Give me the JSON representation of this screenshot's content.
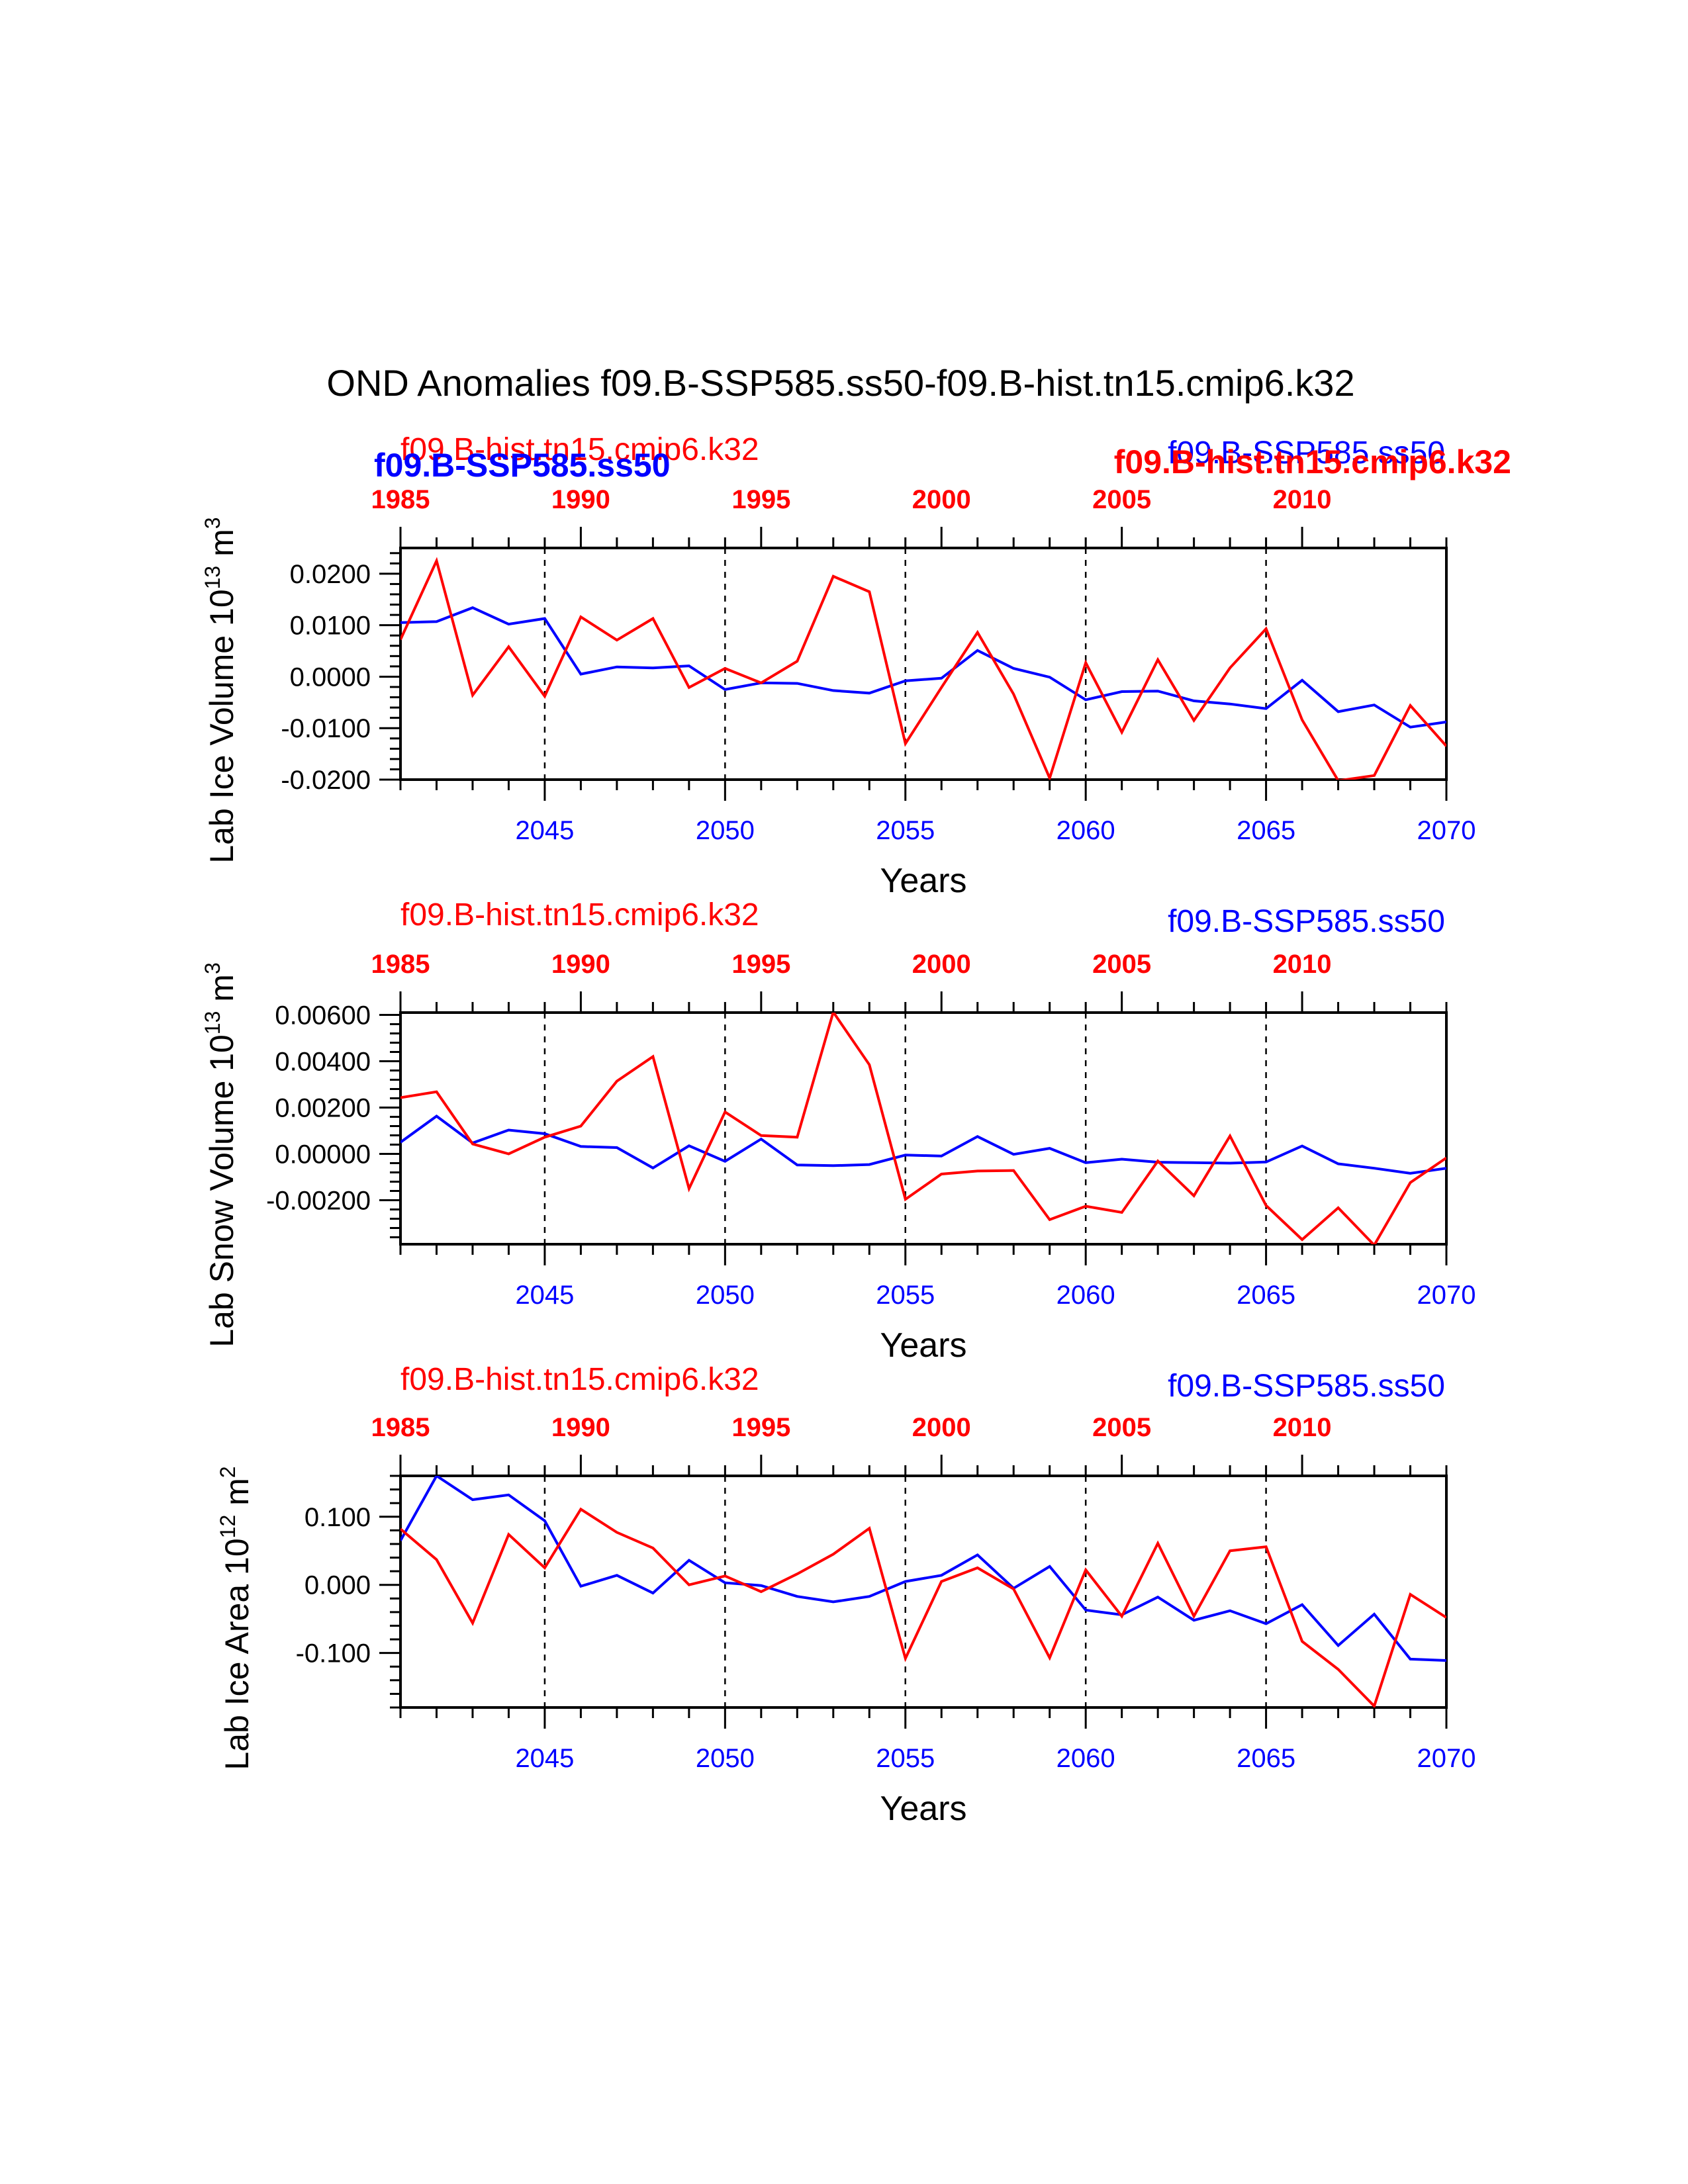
{
  "title": "OND Anomalies f09.B-SSP585.ss50-f09.B-hist.tn15.cmip6.k32",
  "colors": {
    "ssp": "#0000ff",
    "hist": "#ff0000",
    "axis": "#000000"
  },
  "legend": {
    "hist": "f09.B-hist.tn15.cmip6.k32",
    "ssp": "f09.B-SSP585.ss50"
  },
  "chart_data": [
    {
      "type": "line",
      "ylabel": "Lab Ice Volume 10",
      "ylabel_exp": "13",
      "ylabel_unit": " m",
      "ylabel_unit_exp": "3",
      "xlabel": "Years",
      "x": [
        2041,
        2042,
        2043,
        2044,
        2045,
        2046,
        2047,
        2048,
        2049,
        2050,
        2051,
        2052,
        2053,
        2054,
        2055,
        2056,
        2057,
        2058,
        2059,
        2060,
        2061,
        2062,
        2063,
        2064,
        2065,
        2066,
        2067,
        2068,
        2069,
        2070
      ],
      "xlim": [
        2041,
        2070
      ],
      "x_ticks": [
        2045,
        2050,
        2055,
        2060,
        2065,
        2070
      ],
      "x_tick_labels": [
        "2045",
        "2050",
        "2055",
        "2060",
        "2065",
        "2070"
      ],
      "top_xlim": [
        1985,
        2014
      ],
      "top_ticks": [
        1985,
        1990,
        1995,
        2000,
        2005,
        2010
      ],
      "top_tick_labels": [
        "1985",
        "1990",
        "1995",
        "2000",
        "2005",
        "2010"
      ],
      "ylim": [
        -0.02,
        0.025
      ],
      "y_ticks": [
        -0.02,
        -0.01,
        0.0,
        0.01,
        0.02
      ],
      "y_tick_labels": [
        "-0.0200",
        "-0.0100",
        "0.0000",
        "0.0100",
        "0.0200"
      ],
      "series": [
        {
          "name": "f09.B-SSP585.ss50",
          "color": "#0000ff",
          "values": [
            0.0105,
            0.0107,
            0.0134,
            0.0102,
            0.0113,
            0.0005,
            0.0019,
            0.0017,
            0.0021,
            -0.0025,
            -0.0012,
            -0.0013,
            -0.0027,
            -0.0032,
            -0.0008,
            -0.0003,
            0.0051,
            0.0016,
            -0.0001,
            -0.0045,
            -0.0029,
            -0.0028,
            -0.0047,
            -0.0053,
            -0.0062,
            -0.0007,
            -0.0068,
            -0.0055,
            -0.0098,
            -0.0088
          ]
        },
        {
          "name": "f09.B-hist.tn15.cmip6.k32",
          "color": "#ff0000",
          "values": [
            0.0072,
            0.0225,
            -0.0036,
            0.0058,
            -0.0038,
            0.0116,
            0.0071,
            0.0113,
            -0.0021,
            0.0016,
            -0.0012,
            0.003,
            0.0195,
            0.0165,
            -0.013,
            -0.0021,
            0.0086,
            -0.0034,
            -0.0197,
            0.0027,
            -0.0108,
            0.0033,
            -0.0085,
            0.0017,
            0.0093,
            -0.0084,
            -0.0202,
            -0.0192,
            -0.0056,
            -0.0135
          ]
        }
      ]
    },
    {
      "type": "line",
      "ylabel": "Lab Snow Volume 10",
      "ylabel_exp": "13",
      "ylabel_unit": " m",
      "ylabel_unit_exp": "3",
      "xlabel": "Years",
      "x": [
        2041,
        2042,
        2043,
        2044,
        2045,
        2046,
        2047,
        2048,
        2049,
        2050,
        2051,
        2052,
        2053,
        2054,
        2055,
        2056,
        2057,
        2058,
        2059,
        2060,
        2061,
        2062,
        2063,
        2064,
        2065,
        2066,
        2067,
        2068,
        2069,
        2070
      ],
      "xlim": [
        2041,
        2070
      ],
      "x_ticks": [
        2045,
        2050,
        2055,
        2060,
        2065,
        2070
      ],
      "x_tick_labels": [
        "2045",
        "2050",
        "2055",
        "2060",
        "2065",
        "2070"
      ],
      "top_xlim": [
        1985,
        2014
      ],
      "top_ticks": [
        1985,
        1990,
        1995,
        2000,
        2005,
        2010
      ],
      "top_tick_labels": [
        "1985",
        "1990",
        "1995",
        "2000",
        "2005",
        "2010"
      ],
      "ylim": [
        -0.0039,
        0.0061
      ],
      "y_ticks": [
        -0.002,
        0.0,
        0.002,
        0.004,
        0.006
      ],
      "y_tick_labels": [
        "-0.00200",
        "0.00000",
        "0.00200",
        "0.00400",
        "0.00600"
      ],
      "series": [
        {
          "name": "f09.B-SSP585.ss50",
          "color": "#0000ff",
          "values": [
            0.0005,
            0.00163,
            0.00047,
            0.00103,
            0.00087,
            0.00032,
            0.00027,
            -0.00061,
            0.00035,
            -0.00032,
            0.00064,
            -0.00048,
            -0.00051,
            -0.00046,
            -5e-05,
            -9e-05,
            0.00075,
            -2e-05,
            0.00024,
            -0.00038,
            -0.00023,
            -0.00036,
            -0.00038,
            -0.0004,
            -0.00035,
            0.00034,
            -0.00043,
            -0.00062,
            -0.00084,
            -0.00062
          ]
        },
        {
          "name": "f09.B-hist.tn15.cmip6.k32",
          "color": "#ff0000",
          "values": [
            0.00243,
            0.00268,
            0.00043,
            0.0,
            0.00072,
            0.0012,
            0.00314,
            0.0042,
            -0.0015,
            0.00181,
            0.00079,
            0.00072,
            0.00612,
            0.00385,
            -0.00196,
            -0.00087,
            -0.00074,
            -0.00072,
            -0.00284,
            -0.00226,
            -0.00253,
            -0.00031,
            -0.00181,
            0.00077,
            -0.00223,
            -0.0037,
            -0.00233,
            -0.00394,
            -0.00124,
            -0.00017
          ]
        }
      ]
    },
    {
      "type": "line",
      "ylabel": "Lab Ice Area 10",
      "ylabel_exp": "12",
      "ylabel_unit": " m",
      "ylabel_unit_exp": "2",
      "xlabel": "Years",
      "x": [
        2041,
        2042,
        2043,
        2044,
        2045,
        2046,
        2047,
        2048,
        2049,
        2050,
        2051,
        2052,
        2053,
        2054,
        2055,
        2056,
        2057,
        2058,
        2059,
        2060,
        2061,
        2062,
        2063,
        2064,
        2065,
        2066,
        2067,
        2068,
        2069,
        2070
      ],
      "xlim": [
        2041,
        2070
      ],
      "x_ticks": [
        2045,
        2050,
        2055,
        2060,
        2065,
        2070
      ],
      "x_tick_labels": [
        "2045",
        "2050",
        "2055",
        "2060",
        "2065",
        "2070"
      ],
      "top_xlim": [
        1985,
        2014
      ],
      "top_ticks": [
        1985,
        1990,
        1995,
        2000,
        2005,
        2010
      ],
      "top_tick_labels": [
        "1985",
        "1990",
        "1995",
        "2000",
        "2005",
        "2010"
      ],
      "ylim": [
        -0.18,
        0.16
      ],
      "y_ticks": [
        -0.1,
        0.0,
        0.1
      ],
      "y_tick_labels": [
        "-0.100",
        "0.000",
        "0.100"
      ],
      "series": [
        {
          "name": "f09.B-SSP585.ss50",
          "color": "#0000ff",
          "values": [
            0.065,
            0.16,
            0.125,
            0.132,
            0.094,
            -0.002,
            0.014,
            -0.012,
            0.036,
            0.003,
            -0.001,
            -0.017,
            -0.025,
            -0.017,
            0.005,
            0.014,
            0.044,
            -0.005,
            0.027,
            -0.037,
            -0.044,
            -0.018,
            -0.052,
            -0.038,
            -0.057,
            -0.029,
            -0.089,
            -0.043,
            -0.109,
            -0.111
          ]
        },
        {
          "name": "f09.B-hist.tn15.cmip6.k32",
          "color": "#ff0000",
          "values": [
            0.082,
            0.037,
            -0.056,
            0.074,
            0.025,
            0.111,
            0.077,
            0.054,
            0.0,
            0.013,
            -0.01,
            0.016,
            0.045,
            0.083,
            -0.108,
            0.005,
            0.025,
            -0.006,
            -0.107,
            0.022,
            -0.046,
            0.061,
            -0.046,
            0.05,
            0.056,
            -0.083,
            -0.124,
            -0.178,
            -0.014,
            -0.048
          ]
        }
      ]
    }
  ]
}
